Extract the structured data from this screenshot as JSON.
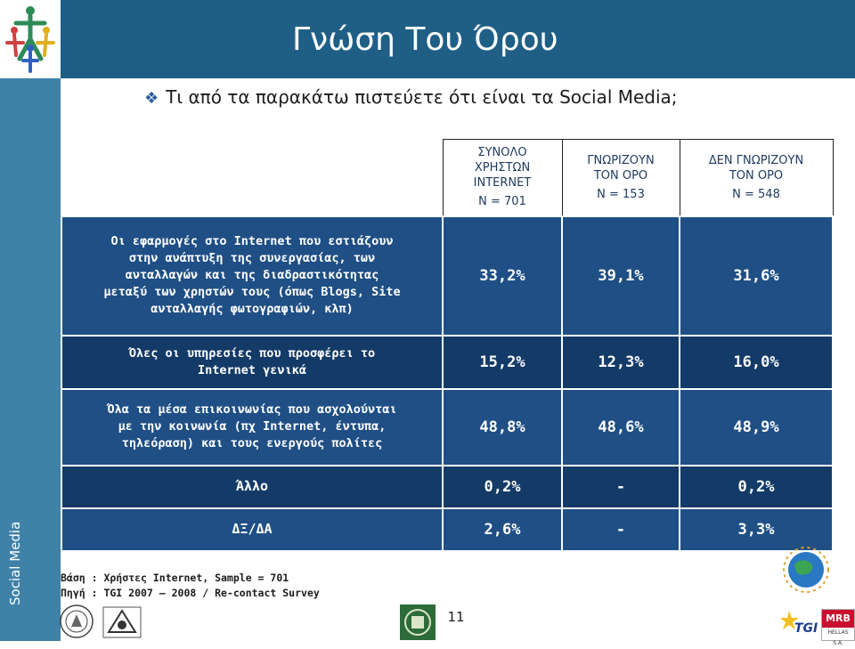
{
  "title": "Γνώση Του Όρου",
  "question": "Τι από τα παρακάτω πιστεύετε ότι είναι τα Social Media;",
  "side_label": "Social Media",
  "columns": [
    {
      "lines": [
        "ΣΥΝΟΛΟ",
        "ΧΡΗΣΤΩΝ",
        "INTERNET",
        "N = 701"
      ]
    },
    {
      "lines": [
        "ΓΝΩΡΙΖΟΥΝ",
        "ΤΟΝ ΟΡΟ",
        "N = 153"
      ]
    },
    {
      "lines": [
        "ΔΕΝ ΓΝΩΡΙΖΟΥΝ",
        "ΤΟΝ ΟΡΟ",
        "N = 548"
      ]
    }
  ],
  "rows": [
    {
      "label_lines": [
        "Οι εφαρμογές στο Internet που εστιάζουν",
        "στην ανάπτυξη της συνεργασίας, των",
        "ανταλλαγών και της διαδραστικότητας",
        "μεταξύ των χρηστών τους (όπως Blogs, Site",
        "ανταλλαγής φωτογραφιών, κλπ)"
      ],
      "values": [
        "33,2%",
        "39,1%",
        "31,6%"
      ]
    },
    {
      "label_lines": [
        "Όλες οι υπηρεσίες που προσφέρει το",
        "Internet γενικά"
      ],
      "values": [
        "15,2%",
        "12,3%",
        "16,0%"
      ]
    },
    {
      "label_lines": [
        "Όλα τα μέσα επικοινωνίας που ασχολούνται",
        "με την κοινωνία (πχ Internet, έντυπα,",
        "τηλεόραση) και τους ενεργούς πολίτες"
      ],
      "values": [
        "48,8%",
        "48,6%",
        "48,9%"
      ]
    },
    {
      "label_lines": [
        "Άλλο"
      ],
      "values": [
        "0,2%",
        "-",
        "0,2%"
      ]
    },
    {
      "label_lines": [
        "ΔΞ/ΔΑ"
      ],
      "values": [
        "2,6%",
        "-",
        "3,3%"
      ]
    }
  ],
  "footnote": {
    "base": "Βάση : Χρήστες Internet, Sample = 701",
    "source": "Πηγή : TGI 2007 – 2008 / Re-contact Survey"
  },
  "page_number": "11",
  "logos": {
    "tgi": "TGI",
    "mrb": "MRB",
    "mrb_sub": "HELLAS S.A."
  }
}
